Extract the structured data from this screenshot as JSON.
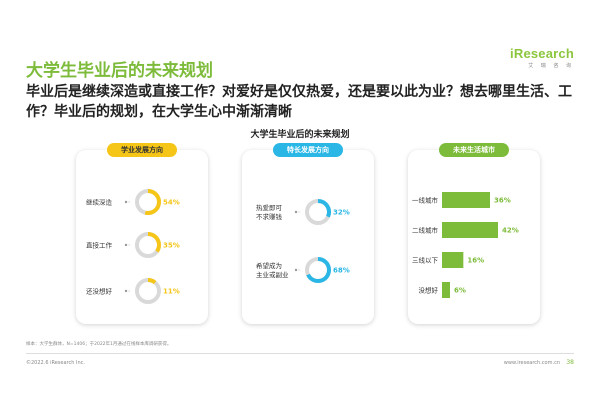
{
  "logo": {
    "brand": "iResearch",
    "sub": "艾 瑞 咨 询"
  },
  "title": "大学生毕业后的未来规划",
  "subtitle": "毕业后是继续深造或直接工作？对爱好是仅仅热爱，还是要以此为业？想去哪里生活、工作？毕业后的规划，在大学生心中渐渐清晰",
  "colors": {
    "yellow": "#f5c518",
    "blue": "#2ab7e6",
    "green": "#7dbb3a",
    "track": "#d9d9d9"
  },
  "chart_data": [
    {
      "type": "pie",
      "title": "大学生毕业后的未来规划",
      "panel_title": "学业发展方向",
      "categories": [
        "继续深造",
        "直接工作",
        "还没想好"
      ],
      "values": [
        54,
        35,
        11
      ],
      "value_labels": [
        "54%",
        "35%",
        "11%"
      ]
    },
    {
      "type": "pie",
      "panel_title": "特长发展方向",
      "categories": [
        "热爱即可不求赚钱",
        "希望成为主业或副业"
      ],
      "label_lines": [
        [
          "热爱即可",
          "不求赚钱"
        ],
        [
          "希望成为",
          "主业或副业"
        ]
      ],
      "values": [
        32,
        68
      ],
      "value_labels": [
        "32%",
        "68%"
      ]
    },
    {
      "type": "bar",
      "panel_title": "未来生活城市",
      "categories": [
        "一线城市",
        "二线城市",
        "三线以下",
        "没想好"
      ],
      "values": [
        36,
        42,
        16,
        6
      ],
      "value_labels": [
        "36%",
        "42%",
        "16%",
        "6%"
      ]
    }
  ],
  "footnote": "样本：大学生群体，N=1406；于2022年1月通过在线样本库调研获得。",
  "copyright": "©2022.6 iResearch Inc.",
  "site": "www.iresearch.com.cn",
  "page_number": "38"
}
